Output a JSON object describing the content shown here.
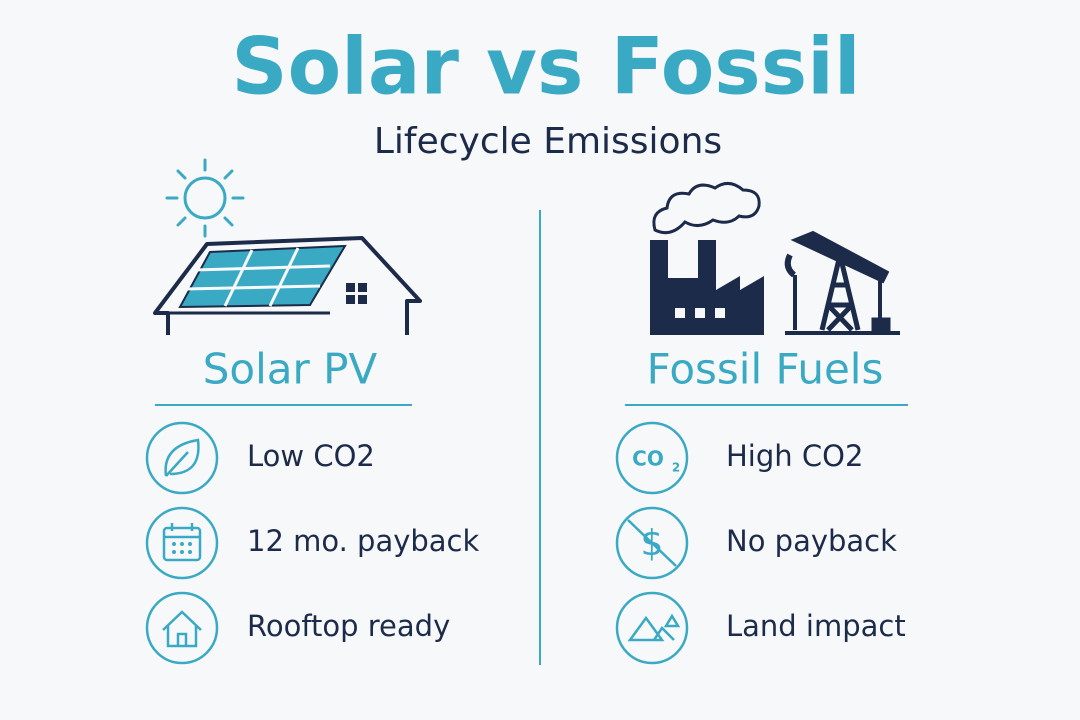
{
  "title": "Solar vs Fossil",
  "subtitle": "Lifecycle Emissions",
  "left": {
    "heading": "Solar PV",
    "items": [
      {
        "text": "Low CO2"
      },
      {
        "text": "12 mo. payback"
      },
      {
        "text": "Rooftop ready"
      }
    ]
  },
  "right": {
    "heading": "Fossil Fuels",
    "items": [
      {
        "text": "High CO2",
        "icon_text": [
          "CO",
          "2"
        ]
      },
      {
        "text": "No payback"
      },
      {
        "text": "Land impact"
      }
    ]
  }
}
